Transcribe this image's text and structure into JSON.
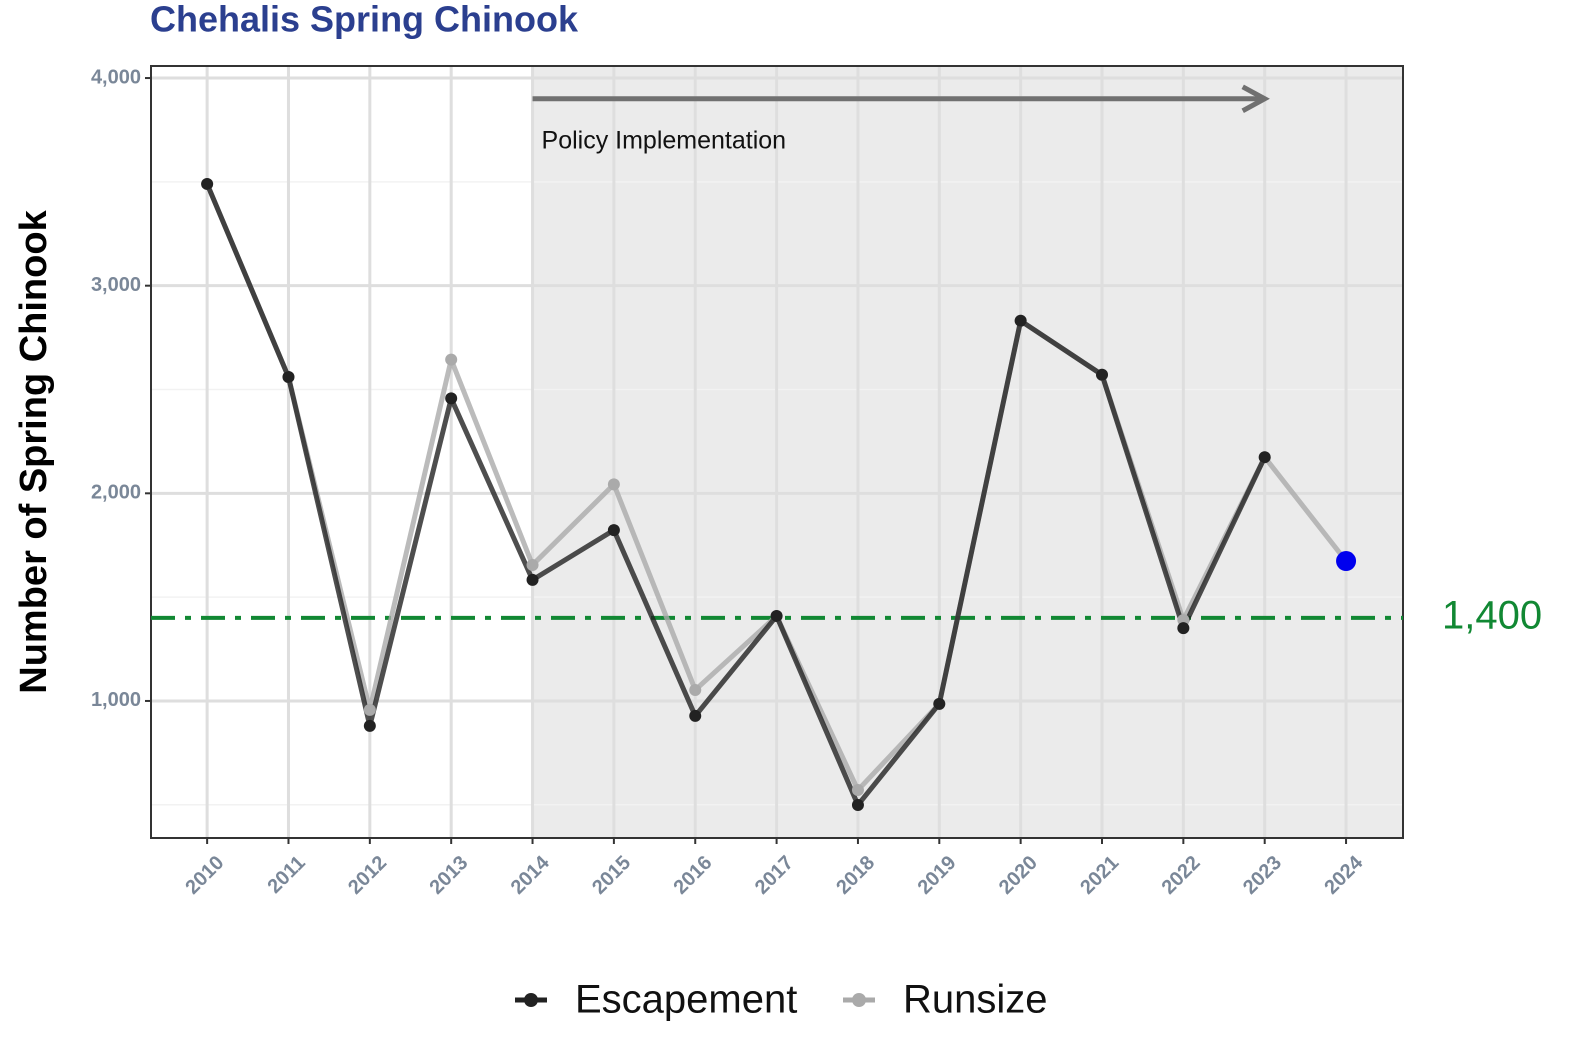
{
  "chart_data": {
    "type": "line",
    "title": "Chehalis Spring Chinook",
    "y_label": "Number of Spring Chinook",
    "x": [
      2010,
      2011,
      2012,
      2013,
      2014,
      2015,
      2016,
      2017,
      2018,
      2019,
      2020,
      2021,
      2022,
      2023,
      2024
    ],
    "series": [
      {
        "name": "Escapement",
        "color": "#222222",
        "values": [
          3490,
          2560,
          880,
          2457,
          1583,
          1823,
          928,
          1409,
          499,
          986,
          2831,
          2571,
          1351,
          2174,
          null
        ]
      },
      {
        "name": "Runsize",
        "color": "#aaaaaa",
        "values": [
          3490,
          2560,
          957,
          2644,
          1655,
          2043,
          1053,
          1409,
          571,
          986,
          2831,
          2571,
          1390,
          2174,
          1674
        ]
      }
    ],
    "highlight": {
      "series": 1,
      "index": 14,
      "color": "#0000ee"
    },
    "xlim": [
      2009.31,
      2024.7
    ],
    "xticks": [
      2010,
      2011,
      2012,
      2013,
      2014,
      2015,
      2016,
      2017,
      2018,
      2019,
      2020,
      2021,
      2022,
      2023,
      2024
    ],
    "ylim": [
      340,
      4058
    ],
    "yticks": [
      {
        "value": 1000,
        "label": "1,000"
      },
      {
        "value": 2000,
        "label": "2,000"
      },
      {
        "value": 3000,
        "label": "3,000"
      },
      {
        "value": 4000,
        "label": "4,000"
      }
    ],
    "minor_yticks": [
      500,
      1500,
      2500,
      3500
    ],
    "grid": true,
    "reference_line": {
      "value": 1400,
      "label": "1,400",
      "color": "#118833"
    },
    "shade_start": 2014,
    "annotation": {
      "text": "Policy Implementation",
      "x_start": 2014,
      "x_end": 2023,
      "y": 3900
    },
    "legend": "bottom"
  }
}
